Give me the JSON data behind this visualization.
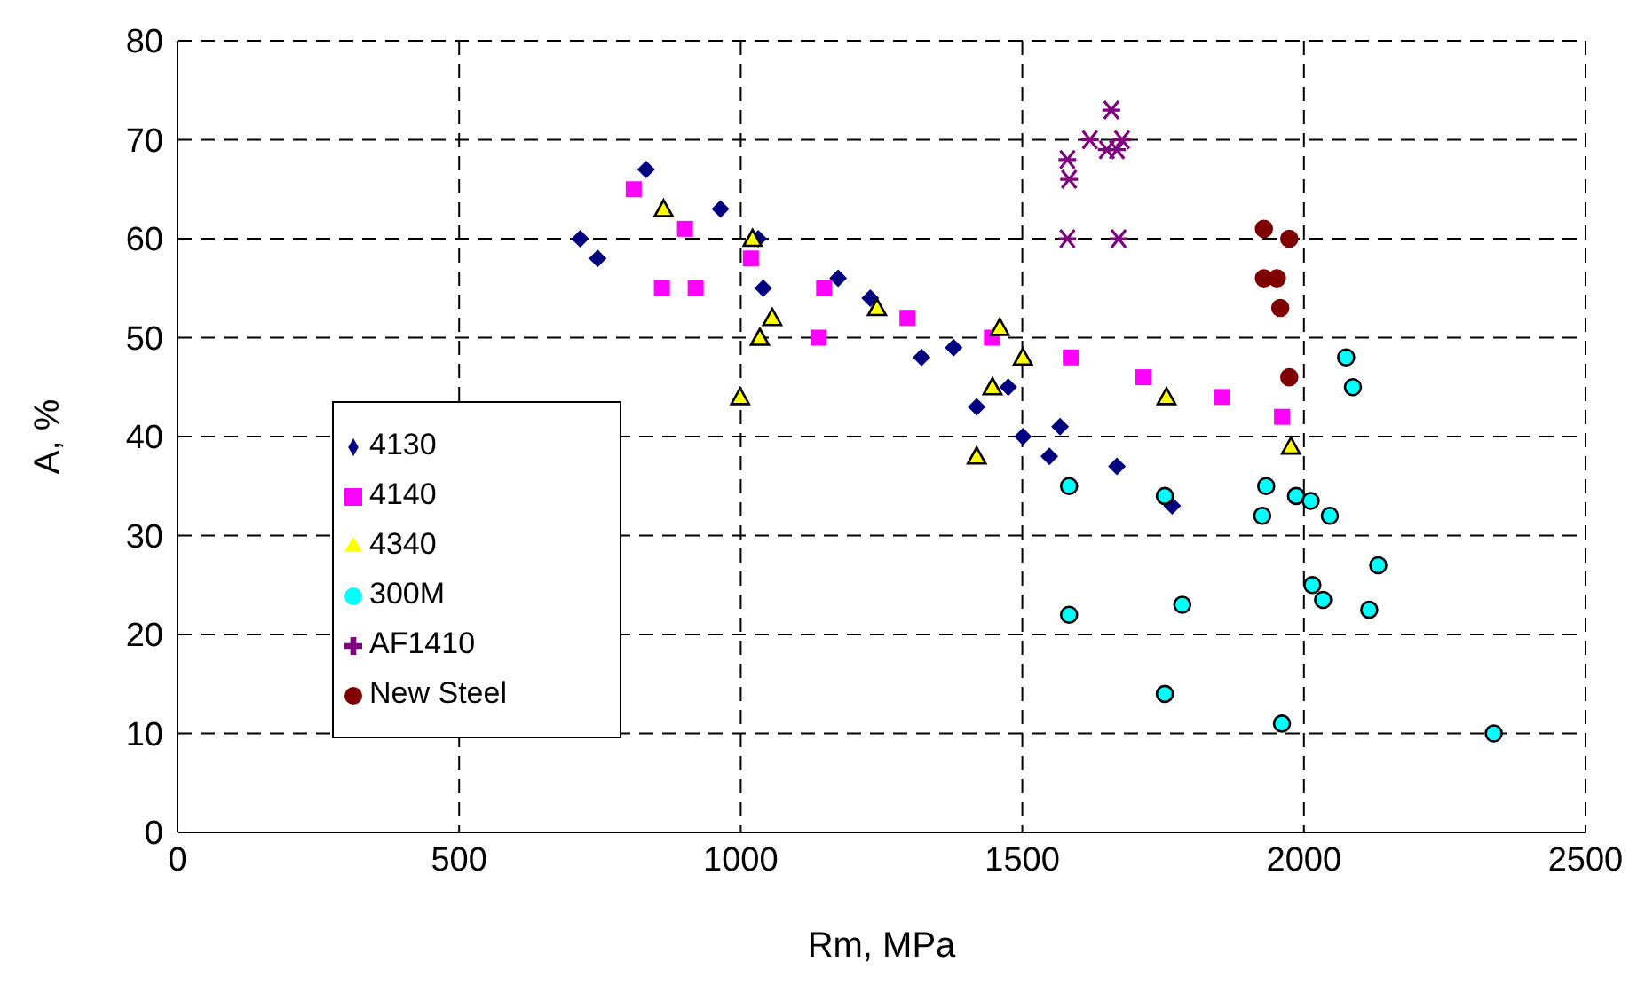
{
  "chart_data": {
    "type": "scatter",
    "xlabel": "Rm, MPa",
    "ylabel": "A, %",
    "xlim": [
      0,
      2500
    ],
    "xticks": [
      0,
      500,
      1000,
      1500,
      2000,
      2500
    ],
    "ylim": [
      0,
      80
    ],
    "yticks": [
      0,
      10,
      20,
      30,
      40,
      50,
      60,
      70,
      80
    ],
    "grid": true,
    "legend": "left",
    "series": [
      {
        "name": "4130",
        "color": "#000080",
        "marker": "diamond",
        "x": [
          715,
          746,
          832,
          964,
          1031,
          1040,
          1173,
          1230,
          1321,
          1378,
          1419,
          1475,
          1501,
          1548,
          1567,
          1668,
          1766
        ],
        "values": [
          60,
          58,
          67,
          63,
          60,
          55,
          56,
          54,
          48,
          49,
          43,
          45,
          40,
          38,
          41,
          37,
          33
        ]
      },
      {
        "name": "4140",
        "color": "#ff00ff",
        "marker": "square",
        "x": [
          810,
          860,
          901,
          920,
          1018,
          1138,
          1148,
          1296,
          1446,
          1586,
          1715,
          1854,
          1961
        ],
        "values": [
          65,
          55,
          61,
          55,
          58,
          50,
          55,
          52,
          50,
          48,
          46,
          44,
          42
        ]
      },
      {
        "name": "4340",
        "color": "#ffff00",
        "marker": "triangle",
        "x": [
          863,
          999,
          1021,
          1034,
          1056,
          1242,
          1419,
          1447,
          1460,
          1501,
          1756,
          1977
        ],
        "values": [
          63,
          44,
          60,
          50,
          52,
          53,
          38,
          45,
          51,
          48,
          44,
          39
        ]
      },
      {
        "name": "300M",
        "color": "#00ffff",
        "marker": "circle",
        "x": [
          1583,
          1583,
          1753,
          1753,
          1784,
          1926,
          1933,
          1961,
          1986,
          2012,
          2015,
          2034,
          2046,
          2075,
          2087,
          2116,
          2132,
          2337
        ],
        "values": [
          35,
          22,
          34,
          14,
          23,
          32,
          35,
          11,
          34,
          33.5,
          25,
          23.5,
          32,
          48,
          45,
          22.5,
          27,
          10
        ]
      },
      {
        "name": "AF1410",
        "color": "#800080",
        "marker": "cross",
        "x": [
          1658,
          1620,
          1677,
          1650,
          1668,
          1580,
          1583,
          1580,
          1671
        ],
        "values": [
          73,
          70,
          70,
          69,
          69,
          68,
          66,
          60,
          60
        ]
      },
      {
        "name": "New Steel",
        "color": "#800000",
        "marker": "circle",
        "x": [
          1929,
          1974,
          1929,
          1952,
          1958,
          1974
        ],
        "values": [
          61,
          60,
          56,
          56,
          53,
          46
        ]
      }
    ]
  }
}
